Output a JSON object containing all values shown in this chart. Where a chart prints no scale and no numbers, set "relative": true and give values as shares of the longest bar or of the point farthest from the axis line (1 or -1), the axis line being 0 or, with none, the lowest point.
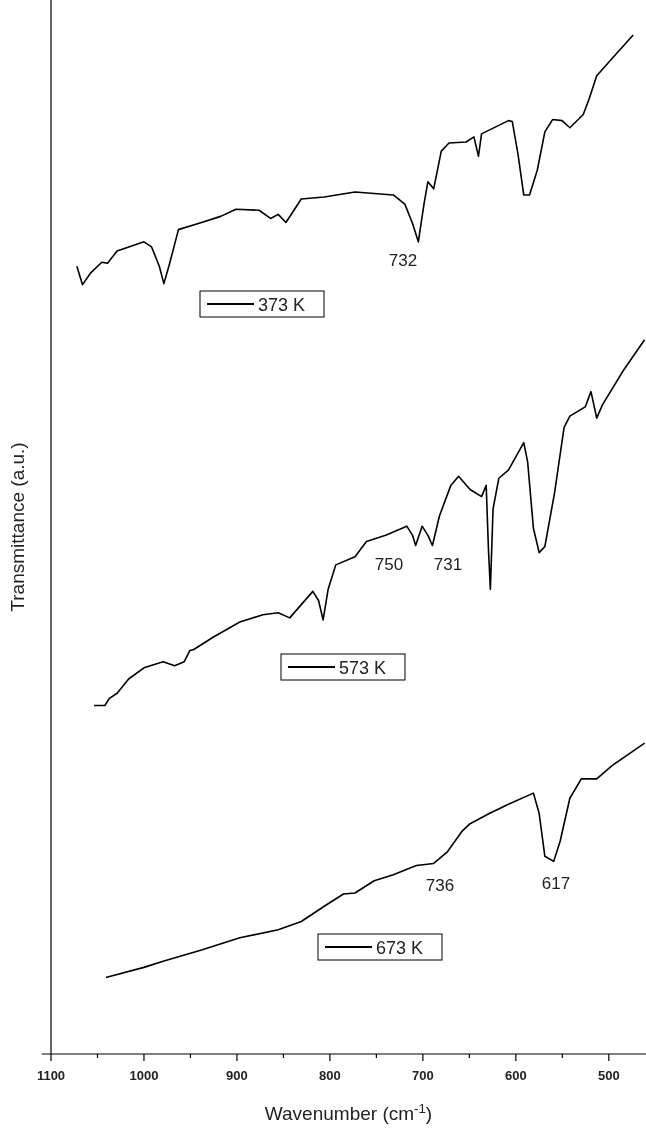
{
  "chart_data": {
    "type": "line",
    "xlabel": "Wavenumber (cm$^{-1}$)",
    "ylabel": "Transmittance (a.u.)",
    "relative": true,
    "xlim": [
      1110,
      460
    ],
    "xticks": [
      1100,
      {
        "value": 1050,
        "label": null
      },
      1000,
      {
        "value": 950,
        "label": null
      },
      900,
      {
        "value": 850,
        "label": null
      },
      800,
      {
        "value": 750,
        "label": null
      },
      700,
      {
        "value": 650,
        "label": null
      },
      600,
      {
        "value": 550,
        "label": null
      },
      500
    ],
    "series": [
      {
        "name": "373 K",
        "color": "#000000",
        "x": [
          1072.2,
          1066.1,
          1057.8,
          1045.4,
          1039.2,
          1028.9,
          1000.0,
          991.8,
          983.5,
          978.6,
          973.2,
          962.9,
          938.1,
          917.5,
          901.0,
          876.2,
          863.8,
          855.6,
          847.3,
          830.8,
          806.1,
          773.0,
          731.8,
          719.4,
          711.1,
          704.9,
          698.8,
          694.6,
          688.4,
          680.2,
          671.9,
          653.4,
          645.1,
          640.2,
          636.9,
          608.0,
          603.8,
          597.7,
          591.5,
          585.3,
          577.0,
          568.8,
          560.5,
          550.2,
          541.9,
          527.5,
          521.3,
          513.0,
          496.5,
          473.8
        ],
        "values": [
          0.773,
          0.755,
          0.766,
          0.777,
          0.776,
          0.788,
          0.797,
          0.792,
          0.773,
          0.756,
          0.773,
          0.809,
          0.816,
          0.822,
          0.829,
          0.828,
          0.82,
          0.824,
          0.816,
          0.839,
          0.841,
          0.846,
          0.843,
          0.834,
          0.815,
          0.797,
          0.834,
          0.856,
          0.849,
          0.886,
          0.894,
          0.895,
          0.9,
          0.881,
          0.903,
          0.916,
          0.915,
          0.883,
          0.843,
          0.843,
          0.867,
          0.905,
          0.917,
          0.916,
          0.909,
          0.922,
          0.937,
          0.96,
          0.977,
          1.0
        ]
      },
      {
        "name": "573 K",
        "color": "#000000",
        "x": [
          1053.7,
          1042.1,
          1037.2,
          1028.9,
          1016.5,
          1000.0,
          979.4,
          967.0,
          956.7,
          950.5,
          946.4,
          925.7,
          896.9,
          872.1,
          855.6,
          843.2,
          830.8,
          818.4,
          812.2,
          807.3,
          801.9,
          793.7,
          773.0,
          760.7,
          740.0,
          717.3,
          711.1,
          707.8,
          700.8,
          694.6,
          689.7,
          682.2,
          669.9,
          661.6,
          649.2,
          636.9,
          631.9,
          629.4,
          627.4,
          624.5,
          618.3,
          608.0,
          591.5,
          587.3,
          581.1,
          574.9,
          568.8,
          558.5,
          548.1,
          541.9,
          525.4,
          519.2,
          513.0,
          506.9,
          484.2,
          461.5
        ],
        "values": [
          0.342,
          0.342,
          0.349,
          0.354,
          0.368,
          0.379,
          0.385,
          0.381,
          0.385,
          0.396,
          0.397,
          0.409,
          0.424,
          0.431,
          0.433,
          0.428,
          0.441,
          0.454,
          0.445,
          0.426,
          0.456,
          0.48,
          0.488,
          0.503,
          0.509,
          0.518,
          0.509,
          0.499,
          0.518,
          0.509,
          0.499,
          0.528,
          0.558,
          0.567,
          0.554,
          0.547,
          0.558,
          0.494,
          0.456,
          0.535,
          0.565,
          0.573,
          0.6,
          0.581,
          0.516,
          0.492,
          0.498,
          0.55,
          0.615,
          0.626,
          0.635,
          0.65,
          0.624,
          0.637,
          0.671,
          0.701
        ]
      },
      {
        "name": "673 K",
        "color": "#000000",
        "x": [
          1041.0,
          1000.0,
          979.4,
          938.1,
          896.9,
          855.6,
          830.8,
          806.1,
          785.4,
          773.0,
          752.4,
          731.8,
          707.0,
          688.4,
          674.0,
          657.5,
          649.2,
          628.6,
          608.0,
          581.1,
          574.9,
          568.8,
          559.3,
          552.3,
          541.9,
          529.6,
          513.0,
          496.5,
          475.9,
          461.5
        ],
        "values": [
          0.075,
          0.085,
          0.091,
          0.102,
          0.114,
          0.122,
          0.13,
          0.145,
          0.157,
          0.158,
          0.17,
          0.176,
          0.185,
          0.187,
          0.198,
          0.219,
          0.226,
          0.236,
          0.245,
          0.256,
          0.236,
          0.194,
          0.189,
          0.209,
          0.251,
          0.27,
          0.27,
          0.283,
          0.296,
          0.305
        ]
      }
    ],
    "legend": "left",
    "annotations": [
      "732",
      "750",
      "731",
      "736",
      "617"
    ]
  }
}
